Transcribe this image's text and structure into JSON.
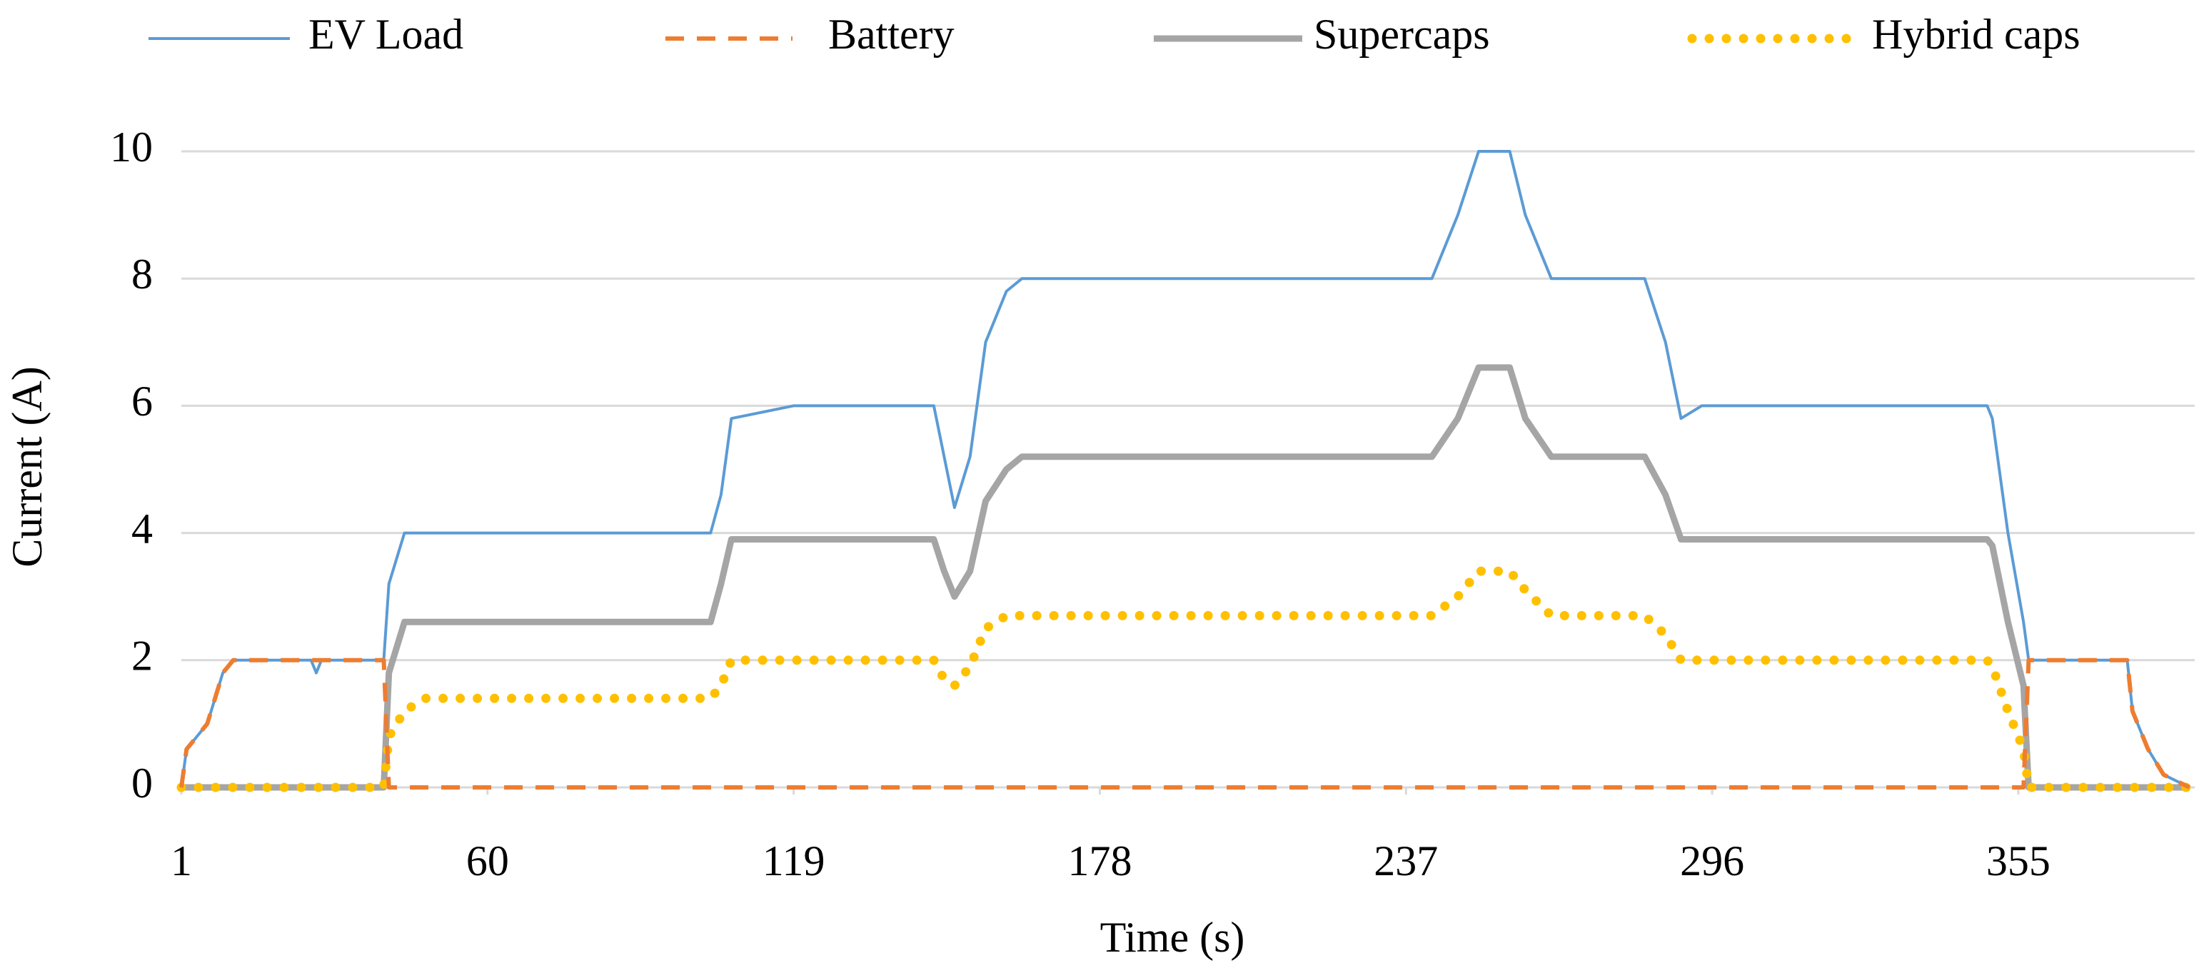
{
  "chart_data": {
    "type": "line",
    "xlabel": "Time (s)",
    "ylabel": "Current (A)",
    "x": [
      1,
      2,
      6,
      9,
      11,
      26,
      27,
      28,
      40,
      41,
      44,
      48,
      60,
      103,
      105,
      107,
      119,
      146,
      148,
      150,
      153,
      156,
      160,
      163,
      242,
      247,
      251,
      257,
      260,
      265,
      283,
      287,
      290,
      294,
      349,
      350,
      353,
      356,
      357,
      376,
      377,
      380,
      383,
      388
    ],
    "xlim": [
      1,
      389
    ],
    "xticks": [
      1,
      60,
      119,
      178,
      237,
      296,
      355
    ],
    "ylim": [
      0,
      10
    ],
    "yticks": [
      0,
      2,
      4,
      6,
      8,
      10
    ],
    "grid": true,
    "legend": "top",
    "series": [
      {
        "name": "EV Load",
        "color": "#5b9bd5",
        "line_style": "solid",
        "values": [
          0,
          0.6,
          1.0,
          1.8,
          2,
          2,
          1.8,
          2,
          2,
          3.2,
          4,
          4,
          4,
          4,
          4.6,
          5.8,
          6,
          6,
          5.2,
          4.4,
          5.2,
          7,
          7.8,
          8,
          8,
          9,
          10,
          10,
          9,
          8,
          8,
          7,
          5.8,
          6,
          6,
          5.8,
          4,
          2.6,
          2,
          2,
          1.2,
          0.6,
          0.2,
          0
        ]
      },
      {
        "name": "Battery",
        "color": "#ed7d31",
        "line_style": "dashed",
        "values": [
          0,
          0.6,
          1.0,
          1.8,
          2,
          2,
          2,
          2,
          2,
          0,
          0,
          0,
          0,
          0,
          0,
          0,
          0,
          0,
          0,
          0,
          0,
          0,
          0,
          0,
          0,
          0,
          0,
          0,
          0,
          0,
          0,
          0,
          0,
          0,
          0,
          0,
          0,
          0,
          2,
          2,
          1.2,
          0.6,
          0.2,
          0
        ]
      },
      {
        "name": "Supercaps",
        "color": "#a5a5a5",
        "line_style": "solid-thick",
        "values": [
          0,
          0,
          0,
          0,
          0,
          0,
          0,
          0,
          0,
          1.8,
          2.6,
          2.6,
          2.6,
          2.6,
          3.2,
          3.9,
          3.9,
          3.9,
          3.4,
          3.0,
          3.4,
          4.5,
          5.0,
          5.2,
          5.2,
          5.8,
          6.6,
          6.6,
          5.8,
          5.2,
          5.2,
          4.6,
          3.9,
          3.9,
          3.9,
          3.8,
          2.6,
          1.6,
          0,
          0,
          0,
          0,
          0,
          0
        ]
      },
      {
        "name": "Hybrid caps",
        "color": "#ffc000",
        "line_style": "dotted",
        "values": [
          0,
          0,
          0,
          0,
          0,
          0,
          0,
          0,
          0,
          0.8,
          1.2,
          1.4,
          1.4,
          1.4,
          1.6,
          2.0,
          2.0,
          2.0,
          1.7,
          1.6,
          1.9,
          2.5,
          2.7,
          2.7,
          2.7,
          3.0,
          3.4,
          3.4,
          3.1,
          2.7,
          2.7,
          2.4,
          2.0,
          2.0,
          2.0,
          1.9,
          1.2,
          0.6,
          0,
          0,
          0,
          0,
          0,
          0
        ]
      }
    ]
  }
}
